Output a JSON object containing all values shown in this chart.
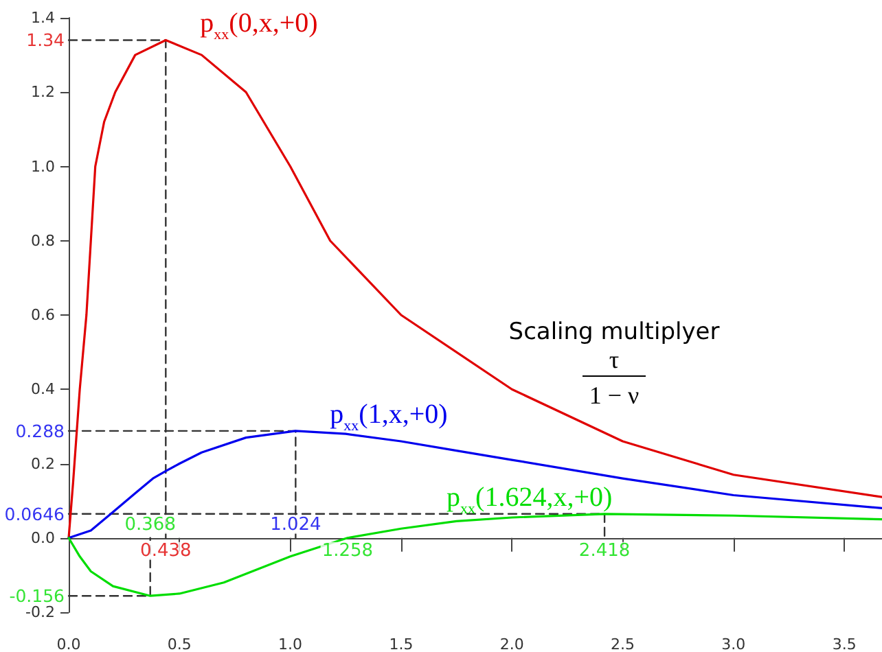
{
  "chart_data": {
    "type": "line",
    "marker": "none",
    "xlim": [
      0,
      3.67
    ],
    "ylim": [
      -0.2,
      1.4
    ],
    "xticks": [
      {
        "value": 0,
        "label": "0.0"
      },
      0.5,
      {
        "value": 1,
        "label": "1.0"
      },
      1.5,
      {
        "value": 2,
        "label": "2.0"
      },
      2.5,
      {
        "value": 3,
        "label": "3.0"
      },
      3.5
    ],
    "yticks": [
      -0.2,
      {
        "value": 0,
        "label": "0.0"
      },
      0.2,
      0.4,
      0.6,
      0.8,
      {
        "value": 1,
        "label": "1.0"
      },
      1.2,
      1.4
    ],
    "series": [
      {
        "name": "p$_{xx}$(0,x,+0)",
        "color": "#e00000",
        "x": [
          0,
          0.02,
          0.05,
          0.08,
          0.1,
          0.12,
          0.16,
          0.21,
          0.3,
          0.438,
          0.6,
          0.8,
          1.0,
          1.18,
          1.5,
          2.0,
          2.5,
          3.0,
          3.67
        ],
        "values": [
          0,
          0.15,
          0.4,
          0.6,
          0.8,
          1.0,
          1.12,
          1.2,
          1.3,
          1.34,
          1.3,
          1.2,
          1.0,
          0.8,
          0.6,
          0.4,
          0.26,
          0.17,
          0.11
        ]
      },
      {
        "name": "p$_{xx}$(1,x,+0)",
        "color": "#0000ee",
        "x": [
          0,
          0.1,
          0.19,
          0.3,
          0.38,
          0.438,
          0.5,
          0.6,
          0.8,
          1.024,
          1.25,
          1.5,
          1.75,
          2.0,
          2.5,
          3.0,
          3.67
        ],
        "values": [
          0,
          0.02,
          0.0646,
          0.12,
          0.16,
          0.18,
          0.2,
          0.23,
          0.27,
          0.288,
          0.28,
          0.26,
          0.235,
          0.21,
          0.16,
          0.115,
          0.08
        ]
      },
      {
        "name": "p$_{xx}$(1.624,x,+0)",
        "color": "#00dd00",
        "x": [
          0,
          0.05,
          0.1,
          0.2,
          0.368,
          0.5,
          0.7,
          1.0,
          1.258,
          1.5,
          1.75,
          2.0,
          2.418,
          3.0,
          3.67
        ],
        "values": [
          0,
          -0.05,
          -0.09,
          -0.13,
          -0.156,
          -0.15,
          -0.12,
          -0.05,
          0,
          0.025,
          0.045,
          0.055,
          0.0646,
          0.06,
          0.05
        ]
      },
      {
        "color": "#333333",
        "line_style": "dashed",
        "x": [
          0,
          0.438,
          0.438
        ],
        "values": [
          1.34,
          1.34,
          0
        ]
      },
      {
        "color": "#333333",
        "line_style": "dashed",
        "x": [
          0,
          1.024,
          1.024
        ],
        "values": [
          0.288,
          0.288,
          0
        ]
      },
      {
        "color": "#333333",
        "line_style": "dashed",
        "x": [
          0,
          0.368,
          0.368
        ],
        "values": [
          -0.156,
          -0.156,
          0
        ]
      },
      {
        "color": "#333333",
        "line_style": "dashed",
        "x": [
          0,
          2.418,
          2.418
        ],
        "values": [
          0.0646,
          0.0646,
          0
        ]
      }
    ],
    "annotations": [
      {
        "text": "1.34",
        "x": 0,
        "y": 1.34
      },
      {
        "text": "0.288",
        "x": 0,
        "y": 0.288
      },
      {
        "text": "0.0646",
        "x": 0,
        "y": 0.0646
      },
      {
        "text": "-0.156",
        "x": 0,
        "y": -0.156
      },
      {
        "text": "0.438",
        "x": 0.438,
        "y": 0
      },
      {
        "text": "0.368",
        "x": 0.368,
        "y": 0
      },
      {
        "text": "1.024",
        "x": 1.024,
        "y": 0
      },
      {
        "text": "1.258",
        "x": 1.258,
        "y": 0
      },
      {
        "text": "2.418",
        "x": 2.418,
        "y": 0
      },
      "Scaling multiplyer",
      "τ",
      "1 − ν"
    ]
  }
}
